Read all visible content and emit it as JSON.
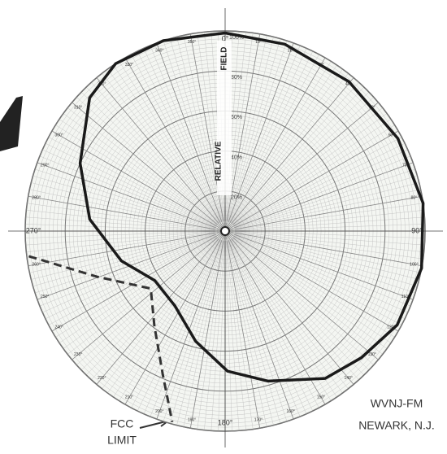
{
  "chart_data": {
    "type": "polar",
    "annotations": {
      "field": "FIELD",
      "relative": "RELATIVE",
      "station": "WVNJ-FM",
      "city": "NEWARK, N.J.",
      "fcc": "FCC",
      "limit": "LIMIT"
    },
    "rlim": [
      0,
      100
    ],
    "rticks": [
      {
        "value": 20,
        "label": "20%"
      },
      {
        "value": 40,
        "label": "40%"
      },
      {
        "value": 60,
        "label": "60%"
      },
      {
        "value": 80,
        "label": "80%"
      },
      {
        "value": 100,
        "label": "100%"
      }
    ],
    "thetaticks": [
      {
        "value": 0,
        "label": "0°"
      },
      {
        "value": 10,
        "label": "10°"
      },
      {
        "value": 20,
        "label": "20°"
      },
      {
        "value": 30,
        "label": "30°"
      },
      {
        "value": 40,
        "label": "40°"
      },
      {
        "value": 50,
        "label": "50°"
      },
      {
        "value": 60,
        "label": "60°"
      },
      {
        "value": 70,
        "label": "70°"
      },
      {
        "value": 80,
        "label": "80°"
      },
      {
        "value": 90,
        "label": "90°"
      },
      {
        "value": 100,
        "label": "100°"
      },
      {
        "value": 110,
        "label": "110°"
      },
      {
        "value": 120,
        "label": "120°"
      },
      {
        "value": 130,
        "label": "130°"
      },
      {
        "value": 140,
        "label": "140°"
      },
      {
        "value": 150,
        "label": "150°"
      },
      {
        "value": 160,
        "label": "160°"
      },
      {
        "value": 170,
        "label": "170°"
      },
      {
        "value": 180,
        "label": "180°"
      },
      {
        "value": 190,
        "label": "190°"
      },
      {
        "value": 200,
        "label": "200°"
      },
      {
        "value": 210,
        "label": "210°"
      },
      {
        "value": 220,
        "label": "220°"
      },
      {
        "value": 230,
        "label": "230°"
      },
      {
        "value": 240,
        "label": "240°"
      },
      {
        "value": 250,
        "label": "250°"
      },
      {
        "value": 260,
        "label": "260°"
      },
      {
        "value": 270,
        "label": "270°"
      },
      {
        "value": 280,
        "label": "280°"
      },
      {
        "value": 290,
        "label": "290°"
      },
      {
        "value": 300,
        "label": "300°"
      },
      {
        "value": 310,
        "label": "310°"
      },
      {
        "value": 320,
        "label": "320°"
      },
      {
        "value": 330,
        "label": "330°"
      },
      {
        "value": 340,
        "label": "340°"
      },
      {
        "value": 350,
        "label": "350°"
      }
    ],
    "grid": true,
    "series": [
      {
        "color": "#1a1a1a",
        "dash": false,
        "width": 3.5,
        "theta": [
          0,
          17.7,
          39.7,
          61.8,
          82,
          100.7,
          118.6,
          132.9,
          145.8,
          164,
          179,
          195,
          214,
          235,
          254,
          275,
          295,
          314.5,
          326.8,
          342,
          360
        ],
        "values": [
          99,
          98,
          97,
          98,
          100,
          100,
          98,
          93,
          89,
          78,
          70,
          57,
          45,
          43,
          54,
          68,
          80,
          95,
          100,
          100,
          99
        ]
      },
      {
        "color": "#333333",
        "dash": true,
        "width": 3,
        "theta": [
          262.7,
          250.4,
          232.3,
          216.9,
          203.6,
          195.5
        ],
        "values": [
          99,
          68,
          47,
          59,
          78,
          99
        ]
      }
    ]
  }
}
